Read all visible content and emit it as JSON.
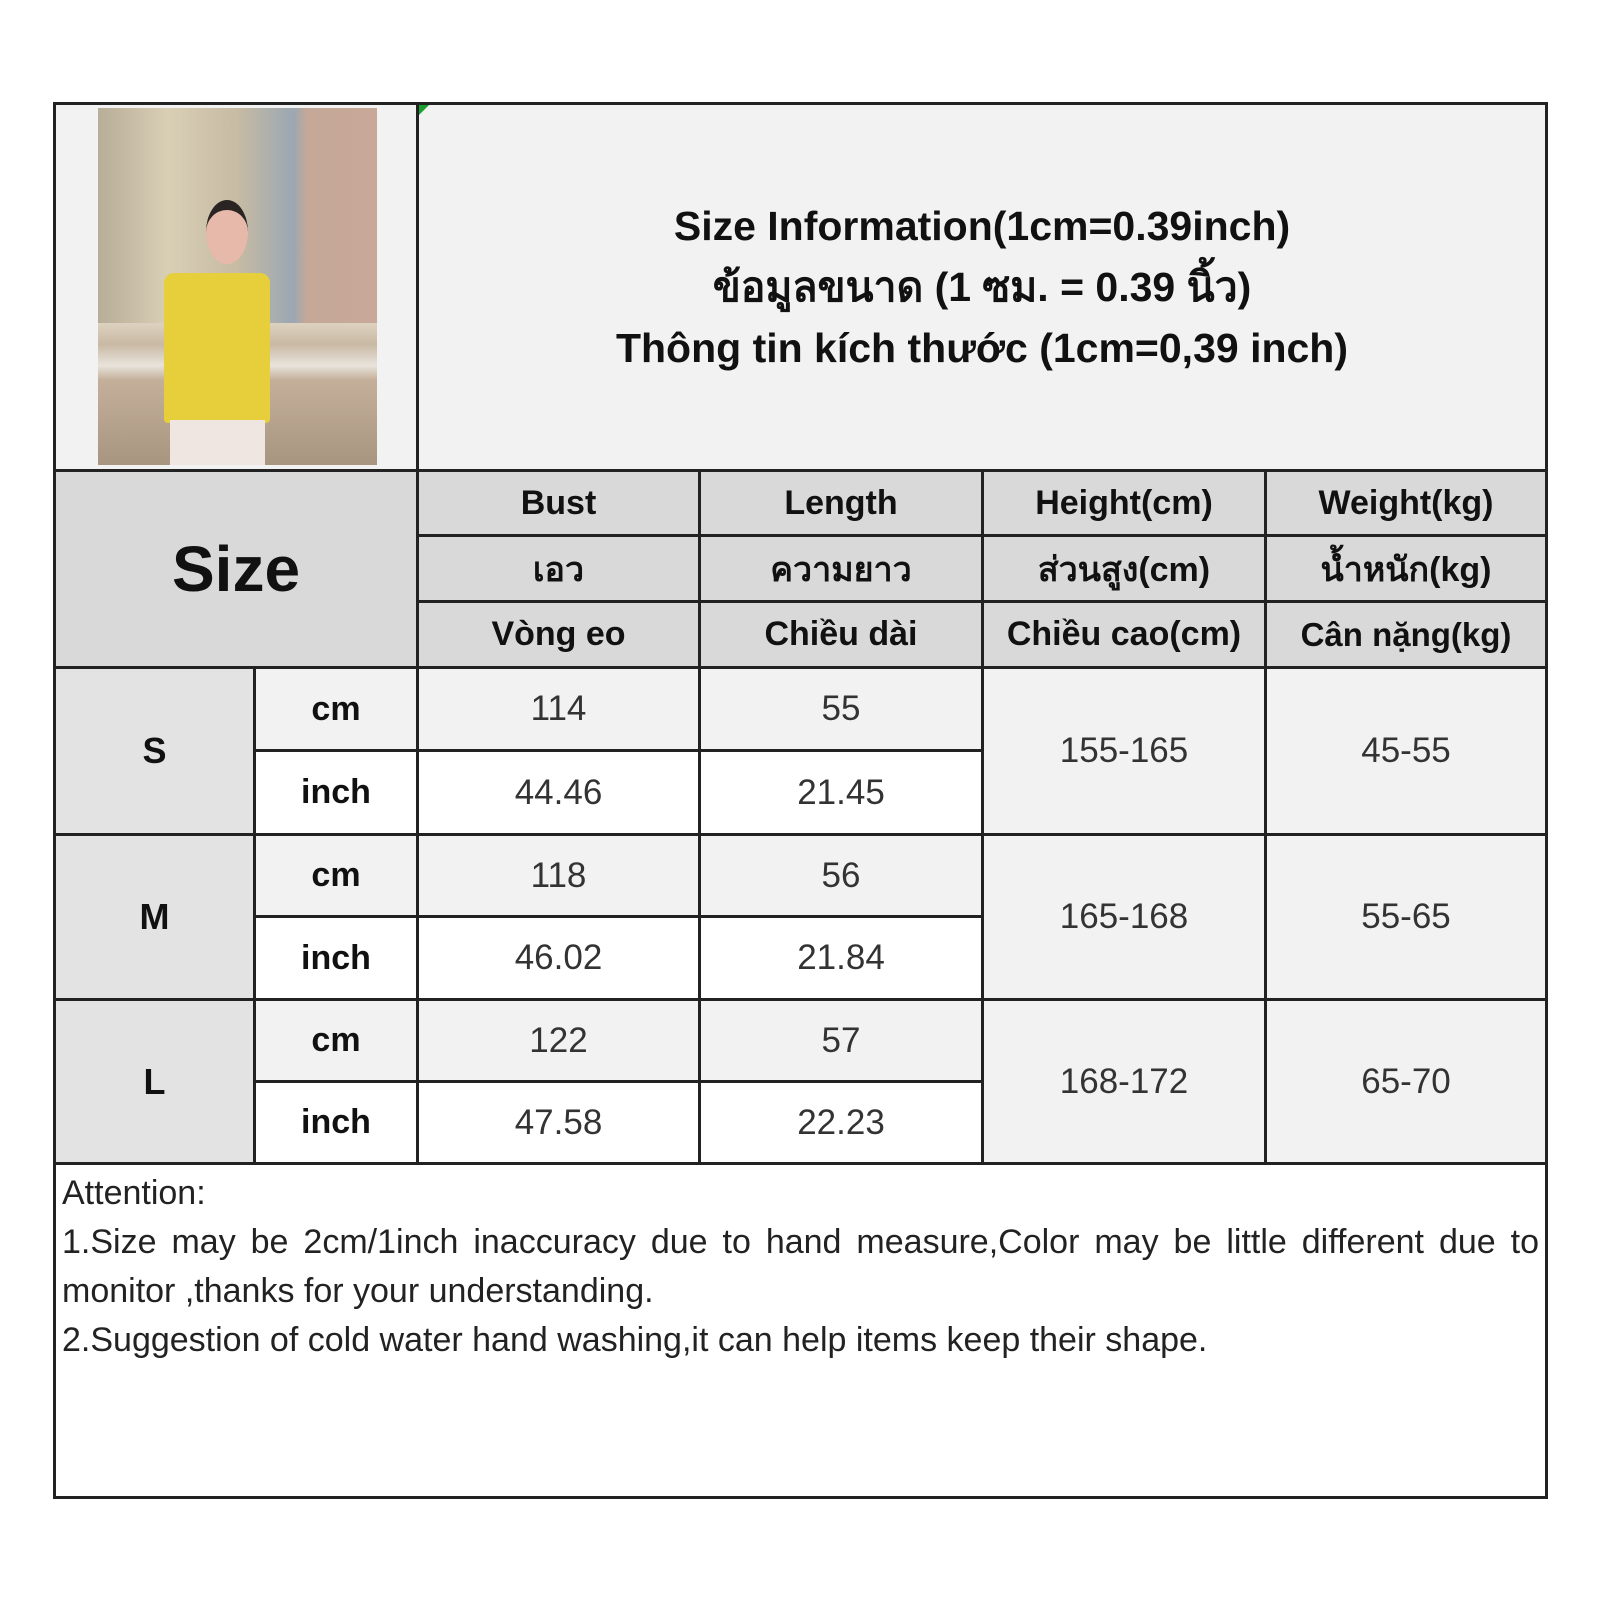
{
  "title": {
    "en": "Size Information(1cm=0.39inch)",
    "th": "ข้อมูลขนาด (1 ซม. = 0.39 นิ้ว)",
    "vi": "Thông tin kích thước (1cm=0,39 inch)"
  },
  "size_label": "Size",
  "columns": [
    {
      "en": "Bust",
      "th": "เอว",
      "vi": "Vòng eo"
    },
    {
      "en": "Length",
      "th": "ความยาว",
      "vi": "Chiều dài"
    },
    {
      "en": "Height(cm)",
      "th": "ส่วนสูง(cm)",
      "vi": "Chiều cao(cm)"
    },
    {
      "en": "Weight(kg)",
      "th": "น้ำหนัก(kg)",
      "vi": "Cân nặng(kg)"
    }
  ],
  "units": {
    "cm": "cm",
    "inch": "inch"
  },
  "rows": [
    {
      "size": "S",
      "bust_cm": "114",
      "length_cm": "55",
      "bust_inch": "44.46",
      "length_inch": "21.45",
      "height": "155-165",
      "weight": "45-55"
    },
    {
      "size": "M",
      "bust_cm": "118",
      "length_cm": "56",
      "bust_inch": "46.02",
      "length_inch": "21.84",
      "height": "165-168",
      "weight": "55-65"
    },
    {
      "size": "L",
      "bust_cm": "122",
      "length_cm": "57",
      "bust_inch": "47.58",
      "length_inch": "22.23",
      "height": "168-172",
      "weight": "65-70"
    }
  ],
  "notes": {
    "heading": "Attention:",
    "line1": "1.Size may be 2cm/1inch inaccuracy due to hand measure,Color may be little different due to monitor ,thanks for your understanding.",
    "line2": "2.Suggestion of cold water hand washing,it can help items keep their shape."
  },
  "colors": {
    "header_bg": "#d9d9d9",
    "light_bg": "#f2f2f2",
    "border": "#222222",
    "product_color": "#e6cf3a"
  }
}
